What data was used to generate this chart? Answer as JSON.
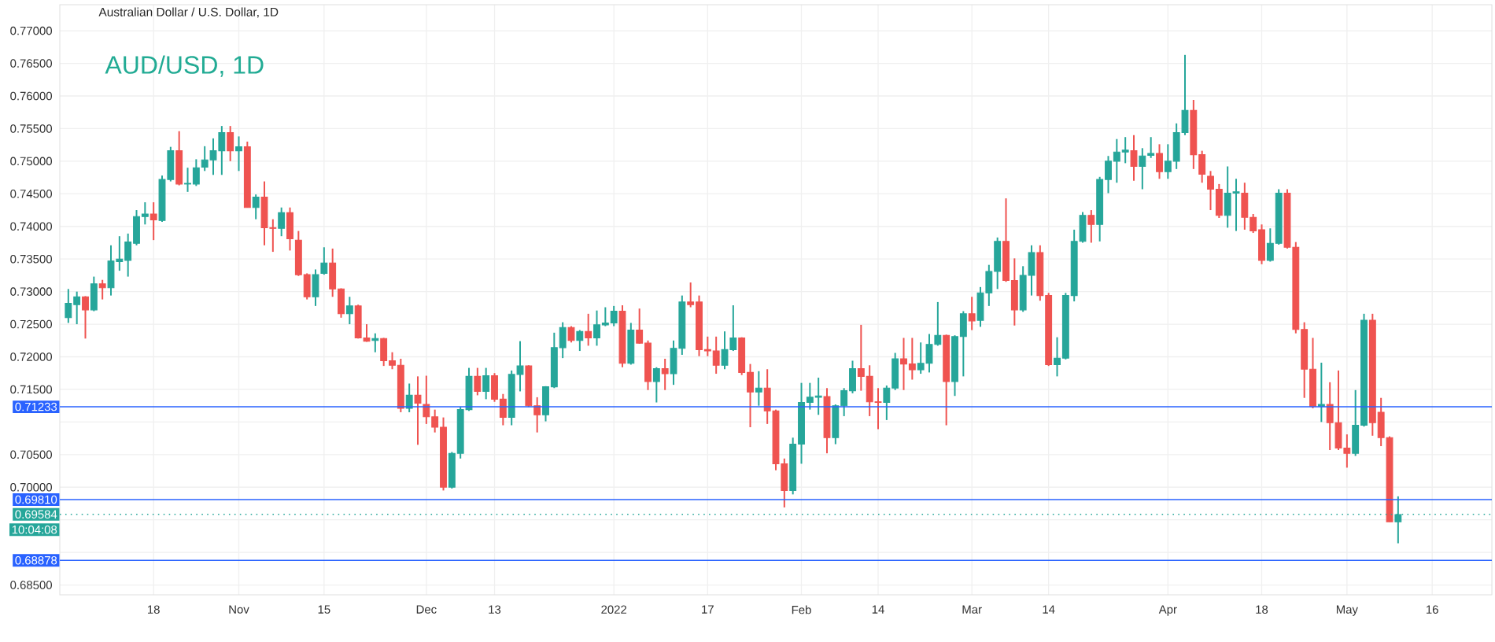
{
  "chart_data": {
    "type": "candlestick",
    "title": "Australian Dollar / U.S. Dollar, 1D",
    "subtitle": "AUD/USD, 1D",
    "categories": [
      null,
      null,
      null,
      null,
      null,
      null,
      null,
      null,
      null,
      null,
      "18",
      null,
      null,
      null,
      null,
      null,
      null,
      null,
      null,
      null,
      "Nov",
      null,
      null,
      null,
      null,
      null,
      null,
      null,
      null,
      null,
      "15",
      null,
      null,
      null,
      null,
      null,
      null,
      null,
      null,
      null,
      null,
      null,
      "Dec",
      null,
      null,
      null,
      null,
      null,
      null,
      null,
      "13",
      null,
      null,
      null,
      null,
      null,
      null,
      null,
      null,
      null,
      null,
      null,
      null,
      null,
      "2022",
      null,
      null,
      null,
      null,
      null,
      null,
      null,
      null,
      null,
      null,
      "17",
      null,
      null,
      null,
      null,
      null,
      null,
      null,
      null,
      null,
      null,
      "Feb",
      null,
      null,
      null,
      null,
      null,
      null,
      null,
      null,
      "14",
      null,
      null,
      null,
      null,
      null,
      null,
      null,
      null,
      null,
      null,
      "Mar",
      null,
      null,
      null,
      null,
      null,
      null,
      null,
      null,
      "14",
      null,
      null,
      null,
      null,
      null,
      null,
      null,
      null,
      null,
      null,
      null,
      null,
      null,
      "Apr",
      null,
      null,
      null,
      null,
      null,
      null,
      null,
      null,
      null,
      null,
      "18",
      null,
      null,
      null,
      null,
      null,
      null,
      null,
      null,
      null,
      "May",
      null,
      null,
      null,
      null,
      null,
      null,
      null,
      null,
      null,
      "16"
    ],
    "ohlc": [
      [
        0.726,
        0.7304,
        0.7252,
        0.7282
      ],
      [
        0.728,
        0.73,
        0.725,
        0.7292
      ],
      [
        0.7292,
        0.7293,
        0.7228,
        0.7272
      ],
      [
        0.7272,
        0.7323,
        0.727,
        0.7312
      ],
      [
        0.7312,
        0.7318,
        0.7288,
        0.7306
      ],
      [
        0.7306,
        0.7371,
        0.7294,
        0.7347
      ],
      [
        0.7346,
        0.7385,
        0.7332,
        0.735
      ],
      [
        0.7348,
        0.7389,
        0.7323,
        0.7376
      ],
      [
        0.7374,
        0.7425,
        0.7371,
        0.7415
      ],
      [
        0.7415,
        0.7437,
        0.7403,
        0.7419
      ],
      [
        0.7419,
        0.7437,
        0.7379,
        0.741
      ],
      [
        0.7409,
        0.7478,
        0.7407,
        0.7472
      ],
      [
        0.7472,
        0.7522,
        0.7469,
        0.7516
      ],
      [
        0.7516,
        0.7546,
        0.7463,
        0.7465
      ],
      [
        0.7465,
        0.749,
        0.7453,
        0.7466
      ],
      [
        0.7465,
        0.7503,
        0.7462,
        0.749
      ],
      [
        0.7491,
        0.7523,
        0.7485,
        0.7502
      ],
      [
        0.7502,
        0.7535,
        0.7479,
        0.7516
      ],
      [
        0.7516,
        0.7554,
        0.7479,
        0.7544
      ],
      [
        0.7544,
        0.7554,
        0.75,
        0.7516
      ],
      [
        0.7516,
        0.7538,
        0.7485,
        0.7522
      ],
      [
        0.7522,
        0.753,
        0.7429,
        0.7429
      ],
      [
        0.7429,
        0.7449,
        0.7411,
        0.7445
      ],
      [
        0.7445,
        0.7469,
        0.7371,
        0.7398
      ],
      [
        0.7398,
        0.7411,
        0.7361,
        0.7397
      ],
      [
        0.7397,
        0.7429,
        0.7385,
        0.7421
      ],
      [
        0.7421,
        0.7429,
        0.7363,
        0.7381
      ],
      [
        0.7379,
        0.7393,
        0.7324,
        0.7326
      ],
      [
        0.7326,
        0.7328,
        0.7288,
        0.7292
      ],
      [
        0.7292,
        0.7334,
        0.7278,
        0.7326
      ],
      [
        0.7328,
        0.7368,
        0.7326,
        0.7344
      ],
      [
        0.7344,
        0.7366,
        0.7292,
        0.7304
      ],
      [
        0.7304,
        0.7305,
        0.726,
        0.7266
      ],
      [
        0.7266,
        0.7292,
        0.725,
        0.7278
      ],
      [
        0.7278,
        0.728,
        0.7228,
        0.7229
      ],
      [
        0.7229,
        0.725,
        0.7223,
        0.7224
      ],
      [
        0.7225,
        0.7236,
        0.7207,
        0.7228
      ],
      [
        0.7228,
        0.7229,
        0.7186,
        0.7194
      ],
      [
        0.7194,
        0.7207,
        0.7181,
        0.7187
      ],
      [
        0.7187,
        0.7197,
        0.7115,
        0.7121
      ],
      [
        0.7121,
        0.7159,
        0.7115,
        0.7141
      ],
      [
        0.7141,
        0.717,
        0.7065,
        0.7129
      ],
      [
        0.7127,
        0.7171,
        0.7097,
        0.7108
      ],
      [
        0.7108,
        0.7119,
        0.7084,
        0.7092
      ],
      [
        0.7092,
        0.7107,
        0.6995,
        0.7
      ],
      [
        0.7,
        0.7054,
        0.6998,
        0.7052
      ],
      [
        0.7052,
        0.7123,
        0.7044,
        0.7119
      ],
      [
        0.7119,
        0.7183,
        0.7117,
        0.717
      ],
      [
        0.717,
        0.7183,
        0.7141,
        0.7147
      ],
      [
        0.7147,
        0.7183,
        0.7135,
        0.7171
      ],
      [
        0.7171,
        0.7175,
        0.7131,
        0.7135
      ],
      [
        0.7135,
        0.7143,
        0.7095,
        0.7107
      ],
      [
        0.7107,
        0.7179,
        0.7095,
        0.7173
      ],
      [
        0.7173,
        0.7224,
        0.7147,
        0.7186
      ],
      [
        0.7186,
        0.7187,
        0.7123,
        0.7125
      ],
      [
        0.7125,
        0.7138,
        0.7084,
        0.7111
      ],
      [
        0.7111,
        0.7155,
        0.7101,
        0.7154
      ],
      [
        0.7154,
        0.7237,
        0.7152,
        0.7214
      ],
      [
        0.7214,
        0.7253,
        0.7198,
        0.7245
      ],
      [
        0.7245,
        0.7247,
        0.7222,
        0.7225
      ],
      [
        0.7225,
        0.7241,
        0.7209,
        0.7239
      ],
      [
        0.7239,
        0.7266,
        0.7217,
        0.7229
      ],
      [
        0.7229,
        0.7271,
        0.7217,
        0.7249
      ],
      [
        0.7249,
        0.7276,
        0.7247,
        0.7252
      ],
      [
        0.7252,
        0.7278,
        0.7247,
        0.727
      ],
      [
        0.727,
        0.7279,
        0.7184,
        0.719
      ],
      [
        0.719,
        0.7252,
        0.7188,
        0.7241
      ],
      [
        0.7241,
        0.7274,
        0.722,
        0.7221
      ],
      [
        0.7221,
        0.7225,
        0.7149,
        0.7162
      ],
      [
        0.7162,
        0.7184,
        0.713,
        0.7182
      ],
      [
        0.7182,
        0.7197,
        0.7149,
        0.7174
      ],
      [
        0.7174,
        0.7225,
        0.7157,
        0.7213
      ],
      [
        0.7213,
        0.7294,
        0.7203,
        0.7284
      ],
      [
        0.7284,
        0.7314,
        0.7276,
        0.728
      ],
      [
        0.7284,
        0.7294,
        0.7201,
        0.7211
      ],
      [
        0.7211,
        0.7231,
        0.7201,
        0.7209
      ],
      [
        0.7209,
        0.7231,
        0.7174,
        0.7187
      ],
      [
        0.7187,
        0.7239,
        0.7181,
        0.7211
      ],
      [
        0.7211,
        0.7279,
        0.7209,
        0.7229
      ],
      [
        0.7229,
        0.723,
        0.7172,
        0.7176
      ],
      [
        0.7176,
        0.7189,
        0.7092,
        0.7146
      ],
      [
        0.7146,
        0.7178,
        0.7125,
        0.7152
      ],
      [
        0.7152,
        0.7181,
        0.7097,
        0.7117
      ],
      [
        0.7117,
        0.7119,
        0.7026,
        0.7036
      ],
      [
        0.7036,
        0.7044,
        0.6969,
        0.6995
      ],
      [
        0.6995,
        0.7076,
        0.6989,
        0.7066
      ],
      [
        0.7066,
        0.716,
        0.7036,
        0.713
      ],
      [
        0.713,
        0.716,
        0.7119,
        0.7138
      ],
      [
        0.7138,
        0.7168,
        0.7111,
        0.714
      ],
      [
        0.7139,
        0.7152,
        0.7052,
        0.7076
      ],
      [
        0.7076,
        0.7127,
        0.7066,
        0.7125
      ],
      [
        0.7125,
        0.7152,
        0.7109,
        0.7148
      ],
      [
        0.7148,
        0.7194,
        0.7144,
        0.7182
      ],
      [
        0.7182,
        0.7249,
        0.7148,
        0.717
      ],
      [
        0.717,
        0.7187,
        0.7109,
        0.7131
      ],
      [
        0.7131,
        0.7152,
        0.7089,
        0.713
      ],
      [
        0.713,
        0.7156,
        0.7103,
        0.7152
      ],
      [
        0.7152,
        0.7206,
        0.7149,
        0.7197
      ],
      [
        0.7197,
        0.7229,
        0.7149,
        0.7189
      ],
      [
        0.7189,
        0.7229,
        0.7165,
        0.718
      ],
      [
        0.718,
        0.7222,
        0.7174,
        0.719
      ],
      [
        0.719,
        0.7235,
        0.7176,
        0.7219
      ],
      [
        0.7219,
        0.7284,
        0.7217,
        0.7233
      ],
      [
        0.7233,
        0.7234,
        0.7095,
        0.7162
      ],
      [
        0.7162,
        0.7233,
        0.714,
        0.7231
      ],
      [
        0.7231,
        0.727,
        0.717,
        0.7266
      ],
      [
        0.7266,
        0.7292,
        0.7241,
        0.7255
      ],
      [
        0.7256,
        0.7307,
        0.7246,
        0.7298
      ],
      [
        0.7298,
        0.7341,
        0.7278,
        0.7331
      ],
      [
        0.7331,
        0.7383,
        0.7304,
        0.7377
      ],
      [
        0.7377,
        0.7443,
        0.7315,
        0.7317
      ],
      [
        0.7317,
        0.7351,
        0.7248,
        0.7272
      ],
      [
        0.7272,
        0.7339,
        0.7269,
        0.7325
      ],
      [
        0.7325,
        0.7371,
        0.7294,
        0.736
      ],
      [
        0.736,
        0.7371,
        0.7286,
        0.7294
      ],
      [
        0.7294,
        0.7298,
        0.7186,
        0.7188
      ],
      [
        0.7188,
        0.723,
        0.717,
        0.7198
      ],
      [
        0.7198,
        0.7298,
        0.7196,
        0.7294
      ],
      [
        0.7294,
        0.7395,
        0.7285,
        0.7377
      ],
      [
        0.7377,
        0.7422,
        0.7375,
        0.7417
      ],
      [
        0.7417,
        0.7425,
        0.7375,
        0.7403
      ],
      [
        0.7403,
        0.7476,
        0.7377,
        0.7472
      ],
      [
        0.7472,
        0.7508,
        0.7451,
        0.75
      ],
      [
        0.75,
        0.7534,
        0.7467,
        0.7514
      ],
      [
        0.7514,
        0.7537,
        0.7497,
        0.7517
      ],
      [
        0.7516,
        0.754,
        0.747,
        0.7492
      ],
      [
        0.7492,
        0.752,
        0.7457,
        0.7508
      ],
      [
        0.7509,
        0.7537,
        0.7505,
        0.7512
      ],
      [
        0.7512,
        0.7526,
        0.7473,
        0.7484
      ],
      [
        0.7484,
        0.7526,
        0.7473,
        0.75
      ],
      [
        0.75,
        0.7558,
        0.7488,
        0.7544
      ],
      [
        0.7544,
        0.7663,
        0.754,
        0.7578
      ],
      [
        0.7578,
        0.7594,
        0.7488,
        0.751
      ],
      [
        0.751,
        0.7516,
        0.7467,
        0.748
      ],
      [
        0.7477,
        0.7485,
        0.7425,
        0.7457
      ],
      [
        0.7457,
        0.7465,
        0.7413,
        0.7417
      ],
      [
        0.7417,
        0.7492,
        0.7398,
        0.7451
      ],
      [
        0.7451,
        0.7473,
        0.7393,
        0.7453
      ],
      [
        0.7451,
        0.7467,
        0.7395,
        0.7414
      ],
      [
        0.7414,
        0.7419,
        0.739,
        0.7393
      ],
      [
        0.7395,
        0.7403,
        0.7342,
        0.7348
      ],
      [
        0.7348,
        0.7397,
        0.7346,
        0.7374
      ],
      [
        0.7374,
        0.7457,
        0.7372,
        0.7451
      ],
      [
        0.7451,
        0.7457,
        0.7366,
        0.7368
      ],
      [
        0.7368,
        0.7376,
        0.7236,
        0.7242
      ],
      [
        0.7242,
        0.7253,
        0.7137,
        0.7181
      ],
      [
        0.7181,
        0.7229,
        0.7121,
        0.7124
      ],
      [
        0.7124,
        0.7191,
        0.71,
        0.7127
      ],
      [
        0.7127,
        0.7161,
        0.7057,
        0.7099
      ],
      [
        0.7099,
        0.7179,
        0.7057,
        0.706
      ],
      [
        0.706,
        0.7081,
        0.703,
        0.7052
      ],
      [
        0.7052,
        0.7149,
        0.7048,
        0.7095
      ],
      [
        0.7095,
        0.7266,
        0.7093,
        0.7256
      ],
      [
        0.7256,
        0.7266,
        0.7079,
        0.7099
      ],
      [
        0.7115,
        0.7137,
        0.7063,
        0.7076
      ],
      [
        0.7076,
        0.7078,
        0.6947,
        0.6947
      ],
      [
        0.6947,
        0.6986,
        0.6914,
        0.6958
      ],
      null,
      null,
      null,
      null
    ],
    "colors": [
      "#26a69a",
      "#26a69a",
      "#ef5350",
      "#26a69a",
      "#ef5350",
      "#26a69a",
      "#26a69a",
      "#26a69a",
      "#26a69a",
      "#26a69a",
      "#ef5350",
      "#26a69a",
      "#26a69a",
      "#ef5350",
      "#26a69a",
      "#26a69a",
      "#26a69a",
      "#26a69a",
      "#26a69a",
      "#ef5350",
      "#26a69a",
      "#ef5350",
      "#26a69a",
      "#ef5350",
      "#ef5350",
      "#26a69a",
      "#ef5350",
      "#ef5350",
      "#ef5350",
      "#26a69a",
      "#26a69a",
      "#ef5350",
      "#ef5350",
      "#26a69a",
      "#ef5350",
      "#ef5350",
      "#26a69a",
      "#ef5350",
      "#ef5350",
      "#ef5350",
      "#26a69a",
      "#ef5350",
      "#ef5350",
      "#ef5350",
      "#ef5350",
      "#26a69a",
      "#26a69a",
      "#26a69a",
      "#ef5350",
      "#26a69a",
      "#ef5350",
      "#ef5350",
      "#26a69a",
      "#26a69a",
      "#ef5350",
      "#ef5350",
      "#26a69a",
      "#26a69a",
      "#26a69a",
      "#ef5350",
      "#26a69a",
      "#ef5350",
      "#26a69a",
      "#26a69a",
      "#26a69a",
      "#ef5350",
      "#26a69a",
      "#ef5350",
      "#ef5350",
      "#26a69a",
      "#ef5350",
      "#26a69a",
      "#26a69a",
      "#ef5350",
      "#ef5350",
      "#ef5350",
      "#ef5350",
      "#26a69a",
      "#26a69a",
      "#ef5350",
      "#ef5350",
      "#26a69a",
      "#ef5350",
      "#ef5350",
      "#ef5350",
      "#26a69a",
      "#26a69a",
      "#26a69a",
      "#26a69a",
      "#ef5350",
      "#26a69a",
      "#26a69a",
      "#26a69a",
      "#ef5350",
      "#ef5350",
      "#ef5350",
      "#26a69a",
      "#26a69a",
      "#ef5350",
      "#ef5350",
      "#26a69a",
      "#26a69a",
      "#26a69a",
      "#ef5350",
      "#26a69a",
      "#26a69a",
      "#ef5350",
      "#26a69a",
      "#26a69a",
      "#26a69a",
      "#ef5350",
      "#ef5350",
      "#26a69a",
      "#26a69a",
      "#ef5350",
      "#ef5350",
      "#26a69a",
      "#26a69a",
      "#26a69a",
      "#26a69a",
      "#ef5350",
      "#26a69a",
      "#26a69a",
      "#26a69a",
      "#26a69a",
      "#ef5350",
      "#26a69a",
      "#26a69a",
      "#ef5350",
      "#26a69a",
      "#26a69a",
      "#26a69a",
      "#ef5350",
      "#ef5350",
      "#ef5350",
      "#ef5350",
      "#26a69a",
      "#26a69a",
      "#ef5350",
      "#ef5350",
      "#ef5350",
      "#26a69a",
      "#26a69a",
      "#ef5350",
      "#ef5350",
      "#ef5350",
      "#ef5350",
      "#26a69a",
      "#ef5350",
      "#ef5350",
      "#ef5350",
      "#26a69a",
      "#26a69a",
      "#ef5350",
      "#ef5350",
      "#ef5350",
      "#26a69a",
      null,
      null,
      null,
      null
    ],
    "ylim": [
      0.6835,
      0.774
    ],
    "yticks": [
      {
        "value": 0.685,
        "label": "0.68500"
      },
      {
        "value": 0.69,
        "label": null
      },
      {
        "value": 0.695,
        "label": null
      },
      {
        "value": 0.7,
        "label": "0.70000"
      },
      {
        "value": 0.705,
        "label": "0.70500"
      },
      {
        "value": 0.71,
        "label": null
      },
      {
        "value": 0.715,
        "label": "0.71500"
      },
      {
        "value": 0.72,
        "label": "0.72000"
      },
      {
        "value": 0.725,
        "label": "0.72500"
      },
      {
        "value": 0.73,
        "label": "0.73000"
      },
      {
        "value": 0.735,
        "label": "0.73500"
      },
      {
        "value": 0.74,
        "label": "0.74000"
      },
      {
        "value": 0.745,
        "label": "0.74500"
      },
      {
        "value": 0.75,
        "label": "0.75000"
      },
      {
        "value": 0.755,
        "label": "0.75500"
      },
      {
        "value": 0.76,
        "label": "0.76000"
      },
      {
        "value": 0.765,
        "label": "0.76500"
      },
      {
        "value": 0.77,
        "label": "0.77000"
      }
    ],
    "ref_lines": [
      {
        "axis": "y",
        "value": 0.71233,
        "label": "0.71233",
        "color": "#2962ff",
        "line_style": "solid"
      },
      {
        "axis": "y",
        "value": 0.6981,
        "label": "0.69810",
        "color": "#2962ff",
        "line_style": "solid"
      },
      {
        "axis": "y",
        "value": 0.69584,
        "label": "0.69584",
        "color": "#26a69a",
        "line_style": "dotted"
      },
      {
        "axis": "y",
        "value": 0.68878,
        "label": "0.68878",
        "color": "#2962ff",
        "line_style": "solid"
      }
    ],
    "annotations": [
      "10:04:08"
    ],
    "grid": true
  }
}
